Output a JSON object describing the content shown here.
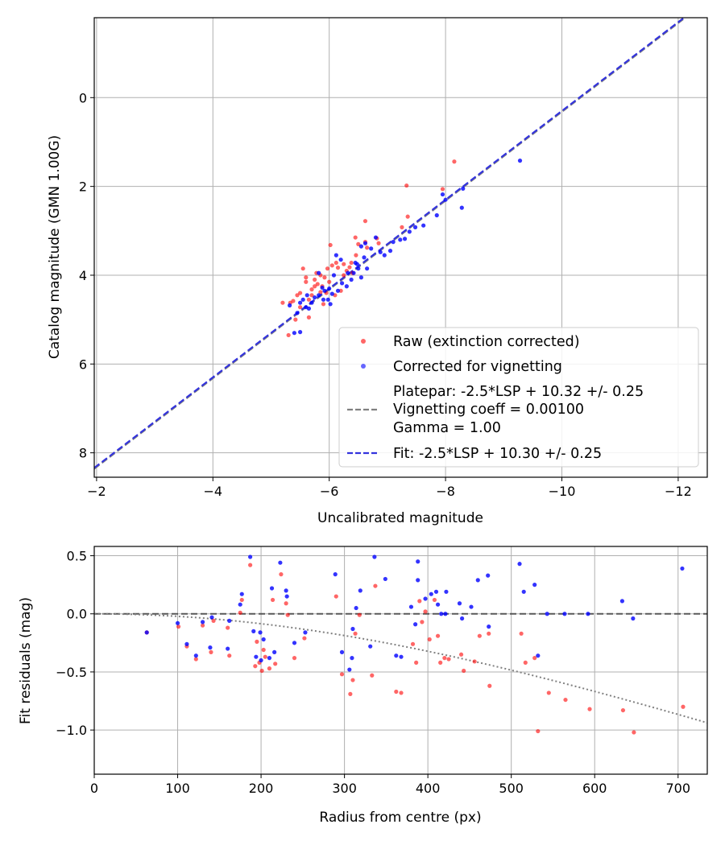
{
  "chart_data": [
    {
      "type": "scatter",
      "xlabel": "Uncalibrated magnitude",
      "ylabel": "Catalog magnitude (GMN 1.00G)",
      "xlim": [
        -1.96,
        -12.5
      ],
      "ylim": [
        8.55,
        -1.8
      ],
      "y_inverted": true,
      "x_inverted": true,
      "xticks": [
        -2,
        -4,
        -6,
        -8,
        -10,
        -12
      ],
      "xtick_labels": [
        "−2",
        "−4",
        "−6",
        "−8",
        "−10",
        "−12"
      ],
      "yticks": [
        0,
        2,
        4,
        6,
        8
      ],
      "ytick_labels": [
        "0",
        "2",
        "4",
        "6",
        "8"
      ],
      "grid": true,
      "legend_position": "lower-right",
      "legend": [
        {
          "label": "Raw (extinction corrected)",
          "marker": "dot",
          "color": "#ff0000"
        },
        {
          "label": "Corrected for vignetting",
          "marker": "dot",
          "color": "#0000ff"
        },
        {
          "label_lines": [
            "Platepar: -2.5*LSP + 10.32 +/- 0.25",
            "Vignetting coeff = 0.00100",
            "Gamma = 1.00"
          ],
          "marker": "dashed-line",
          "color": "#808080"
        },
        {
          "label": "Fit: -2.5*LSP + 10.30 +/- 0.25",
          "marker": "dashed-line",
          "color": "#3333dd"
        }
      ],
      "lines": [
        {
          "name": "Platepar",
          "slope": -1.0,
          "intercept": 10.32,
          "color": "#808080",
          "style": "dashed"
        },
        {
          "name": "Fit",
          "slope": -1.0,
          "intercept": 10.3,
          "color": "#3333dd",
          "style": "dashed"
        }
      ],
      "series": [
        {
          "name": "Raw (extinction corrected)",
          "color": "#ff0000",
          "points": [
            [
              -8.15,
              1.44
            ],
            [
              -7.95,
              2.06
            ],
            [
              -7.33,
              1.98
            ],
            [
              -7.35,
              2.68
            ],
            [
              -7.25,
              2.92
            ],
            [
              -6.85,
              3.28
            ],
            [
              -6.82,
              3.17
            ],
            [
              -6.62,
              2.78
            ],
            [
              -6.62,
              3.25
            ],
            [
              -6.65,
              3.38
            ],
            [
              -6.45,
              3.15
            ],
            [
              -6.5,
              3.3
            ],
            [
              -6.46,
              3.55
            ],
            [
              -6.38,
              3.72
            ],
            [
              -6.3,
              3.9
            ],
            [
              -6.25,
              3.75
            ],
            [
              -6.15,
              3.83
            ],
            [
              -6.12,
              3.72
            ],
            [
              -6.05,
              3.78
            ],
            [
              -6.02,
              3.32
            ],
            [
              -5.97,
              3.85
            ],
            [
              -5.92,
              4.05
            ],
            [
              -5.88,
              4.25
            ],
            [
              -5.85,
              4.38
            ],
            [
              -5.8,
              4.2
            ],
            [
              -5.75,
              4.1
            ],
            [
              -5.7,
              4.32
            ],
            [
              -5.65,
              4.55
            ],
            [
              -5.6,
              4.15
            ],
            [
              -5.55,
              3.85
            ],
            [
              -5.5,
              4.4
            ],
            [
              -5.5,
              4.72
            ],
            [
              -5.45,
              4.45
            ],
            [
              -5.42,
              5.0
            ],
            [
              -5.38,
              4.58
            ],
            [
              -5.33,
              4.62
            ],
            [
              -5.3,
              5.35
            ],
            [
              -5.2,
              4.62
            ],
            [
              -6.2,
              4.35
            ],
            [
              -6.1,
              4.45
            ],
            [
              -5.95,
              4.4
            ],
            [
              -5.75,
              4.25
            ],
            [
              -5.6,
              4.05
            ],
            [
              -5.9,
              4.65
            ],
            [
              -5.65,
              4.95
            ],
            [
              -6.35,
              3.82
            ],
            [
              -6.25,
              4.0
            ],
            [
              -6.4,
              3.95
            ],
            [
              -5.85,
              4.0
            ],
            [
              -5.7,
              4.45
            ],
            [
              -6.0,
              4.15
            ],
            [
              -5.78,
              3.95
            ]
          ]
        },
        {
          "name": "Corrected for vignetting",
          "color": "#0000ff",
          "points": [
            [
              -9.28,
              1.42
            ],
            [
              -8.3,
              2.05
            ],
            [
              -8.28,
              2.48
            ],
            [
              -8.0,
              2.3
            ],
            [
              -7.95,
              2.18
            ],
            [
              -7.85,
              2.65
            ],
            [
              -7.62,
              2.88
            ],
            [
              -7.48,
              2.92
            ],
            [
              -7.38,
              3.02
            ],
            [
              -7.3,
              3.18
            ],
            [
              -7.22,
              3.2
            ],
            [
              -7.1,
              3.25
            ],
            [
              -7.05,
              3.45
            ],
            [
              -6.95,
              3.55
            ],
            [
              -6.88,
              3.48
            ],
            [
              -6.8,
              3.15
            ],
            [
              -6.72,
              3.4
            ],
            [
              -6.62,
              3.28
            ],
            [
              -6.55,
              3.35
            ],
            [
              -6.6,
              3.6
            ],
            [
              -6.5,
              3.85
            ],
            [
              -6.45,
              3.72
            ],
            [
              -6.42,
              3.95
            ],
            [
              -6.38,
              4.1
            ],
            [
              -6.3,
              4.25
            ],
            [
              -6.22,
              4.18
            ],
            [
              -6.15,
              4.35
            ],
            [
              -6.08,
              4.0
            ],
            [
              -6.05,
              4.42
            ],
            [
              -6.02,
              4.65
            ],
            [
              -5.98,
              4.55
            ],
            [
              -5.92,
              4.35
            ],
            [
              -5.88,
              4.28
            ],
            [
              -5.82,
              4.45
            ],
            [
              -5.75,
              4.5
            ],
            [
              -5.7,
              4.62
            ],
            [
              -5.65,
              4.75
            ],
            [
              -5.6,
              4.72
            ],
            [
              -5.55,
              4.55
            ],
            [
              -5.5,
              4.62
            ],
            [
              -5.45,
              4.85
            ],
            [
              -5.4,
              5.3
            ],
            [
              -5.5,
              5.28
            ],
            [
              -5.32,
              4.68
            ],
            [
              -5.62,
              4.45
            ],
            [
              -5.82,
              3.95
            ],
            [
              -6.12,
              3.55
            ],
            [
              -6.32,
              3.95
            ],
            [
              -6.2,
              3.65
            ],
            [
              -6.48,
              3.75
            ],
            [
              -5.9,
              4.55
            ],
            [
              -6.0,
              4.3
            ],
            [
              -6.55,
              4.05
            ],
            [
              -6.65,
              3.85
            ]
          ]
        }
      ]
    },
    {
      "type": "scatter",
      "xlabel": "Radius from centre (px)",
      "ylabel": "Fit residuals (mag)",
      "xlim": [
        0,
        735
      ],
      "ylim": [
        -1.38,
        0.58
      ],
      "xticks": [
        0,
        100,
        200,
        300,
        400,
        500,
        600,
        700
      ],
      "xtick_labels": [
        "0",
        "100",
        "200",
        "300",
        "400",
        "500",
        "600",
        "700"
      ],
      "yticks": [
        0.5,
        0.0,
        -0.5,
        -1.0
      ],
      "ytick_labels": [
        "0.5",
        "0.0",
        "−0.5",
        "−1.0"
      ],
      "grid": true,
      "lines": [
        {
          "name": "zero",
          "type": "hline",
          "y": 0.0,
          "color": "#444444",
          "style": "dashed"
        },
        {
          "name": "vignetting",
          "type": "curve",
          "coeff": 0.001,
          "color": "#808080",
          "style": "dotted"
        }
      ],
      "series": [
        {
          "name": "Raw (extinction corrected)",
          "color": "#ff0000",
          "points": [
            [
              63,
              -0.16
            ],
            [
              101,
              -0.11
            ],
            [
              111,
              -0.28
            ],
            [
              122,
              -0.39
            ],
            [
              130,
              -0.1
            ],
            [
              140,
              -0.33
            ],
            [
              143,
              -0.06
            ],
            [
              160,
              -0.12
            ],
            [
              162,
              -0.36
            ],
            [
              175,
              0.01
            ],
            [
              177,
              0.12
            ],
            [
              187,
              0.42
            ],
            [
              193,
              -0.45
            ],
            [
              195,
              -0.24
            ],
            [
              198,
              -0.42
            ],
            [
              201,
              -0.49
            ],
            [
              203,
              -0.31
            ],
            [
              205,
              -0.37
            ],
            [
              210,
              -0.47
            ],
            [
              214,
              0.12
            ],
            [
              217,
              -0.43
            ],
            [
              224,
              0.34
            ],
            [
              230,
              0.09
            ],
            [
              232,
              -0.01
            ],
            [
              240,
              -0.38
            ],
            [
              252,
              -0.21
            ],
            [
              290,
              0.15
            ],
            [
              297,
              -0.52
            ],
            [
              307,
              -0.69
            ],
            [
              310,
              -0.57
            ],
            [
              313,
              -0.17
            ],
            [
              318,
              -0.01
            ],
            [
              333,
              -0.53
            ],
            [
              337,
              0.24
            ],
            [
              362,
              -0.67
            ],
            [
              368,
              -0.68
            ],
            [
              382,
              -0.26
            ],
            [
              386,
              -0.42
            ],
            [
              390,
              0.11
            ],
            [
              393,
              -0.07
            ],
            [
              397,
              0.02
            ],
            [
              402,
              -0.22
            ],
            [
              408,
              0.12
            ],
            [
              412,
              -0.19
            ],
            [
              415,
              -0.42
            ],
            [
              420,
              -0.38
            ],
            [
              425,
              -0.39
            ],
            [
              440,
              -0.35
            ],
            [
              443,
              -0.49
            ],
            [
              456,
              -0.41
            ],
            [
              462,
              -0.19
            ],
            [
              473,
              -0.17
            ],
            [
              474,
              -0.62
            ],
            [
              512,
              -0.17
            ],
            [
              517,
              -0.42
            ],
            [
              528,
              -0.38
            ],
            [
              532,
              -1.01
            ],
            [
              545,
              -0.68
            ],
            [
              565,
              -0.74
            ],
            [
              594,
              -0.82
            ],
            [
              634,
              -0.83
            ],
            [
              647,
              -1.02
            ],
            [
              706,
              -0.8
            ]
          ]
        },
        {
          "name": "Corrected for vignetting",
          "color": "#0000ff",
          "points": [
            [
              63,
              -0.16
            ],
            [
              100,
              -0.08
            ],
            [
              111,
              -0.26
            ],
            [
              122,
              -0.36
            ],
            [
              130,
              -0.07
            ],
            [
              139,
              -0.29
            ],
            [
              141,
              -0.03
            ],
            [
              160,
              -0.3
            ],
            [
              162,
              -0.06
            ],
            [
              175,
              0.08
            ],
            [
              177,
              0.17
            ],
            [
              187,
              0.49
            ],
            [
              191,
              -0.15
            ],
            [
              194,
              -0.37
            ],
            [
              199,
              -0.16
            ],
            [
              200,
              -0.4
            ],
            [
              203,
              -0.22
            ],
            [
              210,
              -0.38
            ],
            [
              213,
              0.22
            ],
            [
              216,
              -0.33
            ],
            [
              223,
              0.44
            ],
            [
              230,
              0.2
            ],
            [
              231,
              0.15
            ],
            [
              240,
              -0.25
            ],
            [
              253,
              -0.16
            ],
            [
              289,
              0.34
            ],
            [
              297,
              -0.33
            ],
            [
              306,
              -0.48
            ],
            [
              309,
              -0.38
            ],
            [
              310,
              -0.13
            ],
            [
              314,
              0.05
            ],
            [
              319,
              0.2
            ],
            [
              331,
              -0.28
            ],
            [
              336,
              0.49
            ],
            [
              349,
              0.3
            ],
            [
              362,
              -0.36
            ],
            [
              368,
              -0.37
            ],
            [
              380,
              0.06
            ],
            [
              385,
              -0.09
            ],
            [
              388,
              0.29
            ],
            [
              388,
              0.45
            ],
            [
              397,
              0.13
            ],
            [
              404,
              0.17
            ],
            [
              410,
              0.19
            ],
            [
              412,
              0.08
            ],
            [
              416,
              0.0
            ],
            [
              421,
              0.0
            ],
            [
              422,
              0.19
            ],
            [
              438,
              0.09
            ],
            [
              441,
              -0.04
            ],
            [
              452,
              0.06
            ],
            [
              460,
              0.29
            ],
            [
              472,
              0.33
            ],
            [
              473,
              -0.11
            ],
            [
              510,
              0.43
            ],
            [
              515,
              0.19
            ],
            [
              528,
              0.25
            ],
            [
              532,
              -0.36
            ],
            [
              543,
              0.0
            ],
            [
              564,
              0.0
            ],
            [
              592,
              0.0
            ],
            [
              633,
              0.11
            ],
            [
              646,
              -0.04
            ],
            [
              705,
              0.39
            ]
          ]
        }
      ]
    }
  ]
}
